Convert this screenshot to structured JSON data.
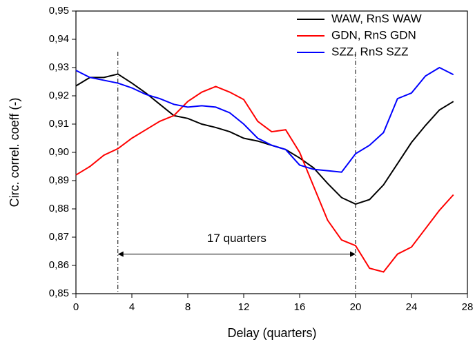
{
  "chart_data": {
    "type": "line",
    "x": [
      0,
      1,
      2,
      3,
      4,
      5,
      6,
      7,
      8,
      9,
      10,
      11,
      12,
      13,
      14,
      15,
      16,
      17,
      18,
      19,
      20,
      21,
      22,
      23,
      24,
      25,
      26,
      27
    ],
    "series": [
      {
        "name": "WAW, RnS WAW",
        "color": "#000000",
        "values": [
          0.9235,
          0.9265,
          0.9265,
          0.9277,
          0.9245,
          0.921,
          0.917,
          0.913,
          0.912,
          0.91,
          0.9088,
          0.9073,
          0.905,
          0.904,
          0.9025,
          0.901,
          0.898,
          0.8945,
          0.889,
          0.884,
          0.8817,
          0.8833,
          0.8885,
          0.896,
          0.9035,
          0.9095,
          0.915,
          0.918
        ]
      },
      {
        "name": "GDN, RnS GDN",
        "color": "#ff0000",
        "values": [
          0.892,
          0.895,
          0.899,
          0.9013,
          0.905,
          0.908,
          0.911,
          0.913,
          0.918,
          0.9213,
          0.9233,
          0.9213,
          0.9187,
          0.911,
          0.9073,
          0.908,
          0.9,
          0.888,
          0.876,
          0.869,
          0.867,
          0.859,
          0.8577,
          0.864,
          0.8665,
          0.873,
          0.8795,
          0.885
        ]
      },
      {
        "name": "SZZ, RnS SZZ",
        "color": "#0000ff",
        "values": [
          0.929,
          0.9265,
          0.9255,
          0.9245,
          0.9228,
          0.9205,
          0.919,
          0.917,
          0.916,
          0.9165,
          0.916,
          0.914,
          0.91,
          0.905,
          0.9025,
          0.901,
          0.8955,
          0.894,
          0.8935,
          0.893,
          0.8995,
          0.9025,
          0.907,
          0.919,
          0.921,
          0.927,
          0.93,
          0.9275
        ]
      }
    ],
    "xlabel": "Delay (quarters)",
    "ylabel": "Circ. correl. coeff (-)",
    "xlim": [
      0,
      28
    ],
    "xticks": [
      0,
      4,
      8,
      12,
      16,
      20,
      24,
      28
    ],
    "ylim": [
      0.85,
      0.95
    ],
    "yticks": [
      {
        "value": 0.85,
        "label": "0,85"
      },
      {
        "value": 0.86,
        "label": "0,86"
      },
      {
        "value": 0.87,
        "label": "0,87"
      },
      {
        "value": 0.88,
        "label": "0,88"
      },
      {
        "value": 0.89,
        "label": "0,89"
      },
      {
        "value": 0.9,
        "label": "0,90"
      },
      {
        "value": 0.91,
        "label": "0,91"
      },
      {
        "value": 0.92,
        "label": "0,92"
      },
      {
        "value": 0.93,
        "label": "0,93"
      },
      {
        "value": 0.94,
        "label": "0,94"
      },
      {
        "value": 0.95,
        "label": "0,95"
      }
    ],
    "vlines": [
      3,
      20
    ],
    "annotation": {
      "text": "17 quarters",
      "y": 0.864
    },
    "legend": "top-right"
  }
}
